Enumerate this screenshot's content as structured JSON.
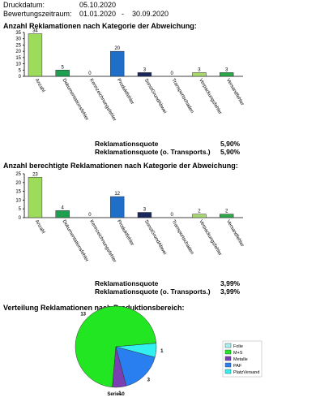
{
  "header": {
    "print_label": "Druckdatum:",
    "print_date": "05.10.2020",
    "period_label": "Bewertungszeitraum:",
    "period_from": "01.01.2020",
    "period_sep": "-",
    "period_to": "30.09.2020"
  },
  "chart_data": [
    {
      "type": "bar",
      "title": "Anzahl Reklamationen nach Kategorie der Abweichung:",
      "categories": [
        "Anzahl",
        "Dokumentationsfehler",
        "Kennzeichnungsfehler",
        "Produktfehler",
        "SonstGrundAbwei",
        "Transportschaden",
        "Verpackungsfehler",
        "Versandfehler"
      ],
      "values": [
        34,
        5,
        0,
        20,
        3,
        0,
        3,
        3
      ],
      "colors": [
        "#9ddc5a",
        "#1fa050",
        "#1fa050",
        "#1f6fc8",
        "#18285a",
        "#18285a",
        "#a6d86e",
        "#2aa84a"
      ],
      "ylim": [
        0,
        35
      ],
      "yticks": [
        0,
        5,
        10,
        15,
        20,
        25,
        30,
        35
      ]
    },
    {
      "type": "bar",
      "title": "Anzahl berechtigte Reklamationen nach Kategorie der Abweichung:",
      "categories": [
        "Anzahl",
        "Dokumentationsfehler",
        "Kennzeichnungsfehler",
        "Produktfehler",
        "SonstGrundAbwei",
        "Transportschaden",
        "Verpackungsfehler",
        "Versandfehler"
      ],
      "values": [
        23,
        4,
        0,
        12,
        3,
        0,
        2,
        2
      ],
      "colors": [
        "#9ddc5a",
        "#1fa050",
        "#1fa050",
        "#1f6fc8",
        "#18285a",
        "#18285a",
        "#a6d86e",
        "#2aa84a"
      ],
      "ylim": [
        0,
        25
      ],
      "yticks": [
        0,
        5,
        10,
        15,
        20,
        25
      ]
    },
    {
      "type": "pie",
      "title": "Verteilung Reklamationen nach Produktionsbereich:",
      "categories": [
        "Folie",
        "M+S",
        "Metalle",
        "PAF",
        "PlatzVersand"
      ],
      "values": [
        0,
        13,
        1,
        3,
        1
      ],
      "colors": [
        "#aaf0f0",
        "#22e622",
        "#7a3fb0",
        "#2a7ff0",
        "#33f0f0"
      ],
      "series_name": "Series0"
    }
  ],
  "quotes": [
    [
      [
        "Reklamationsquote",
        "5,90%"
      ],
      [
        "Reklamationsquote (o. Transports.)",
        "5,90%"
      ]
    ],
    [
      [
        "Reklamationsquote",
        "3,99%"
      ],
      [
        "Reklamationsquote (o. Transports.)",
        "3,99%"
      ]
    ]
  ]
}
